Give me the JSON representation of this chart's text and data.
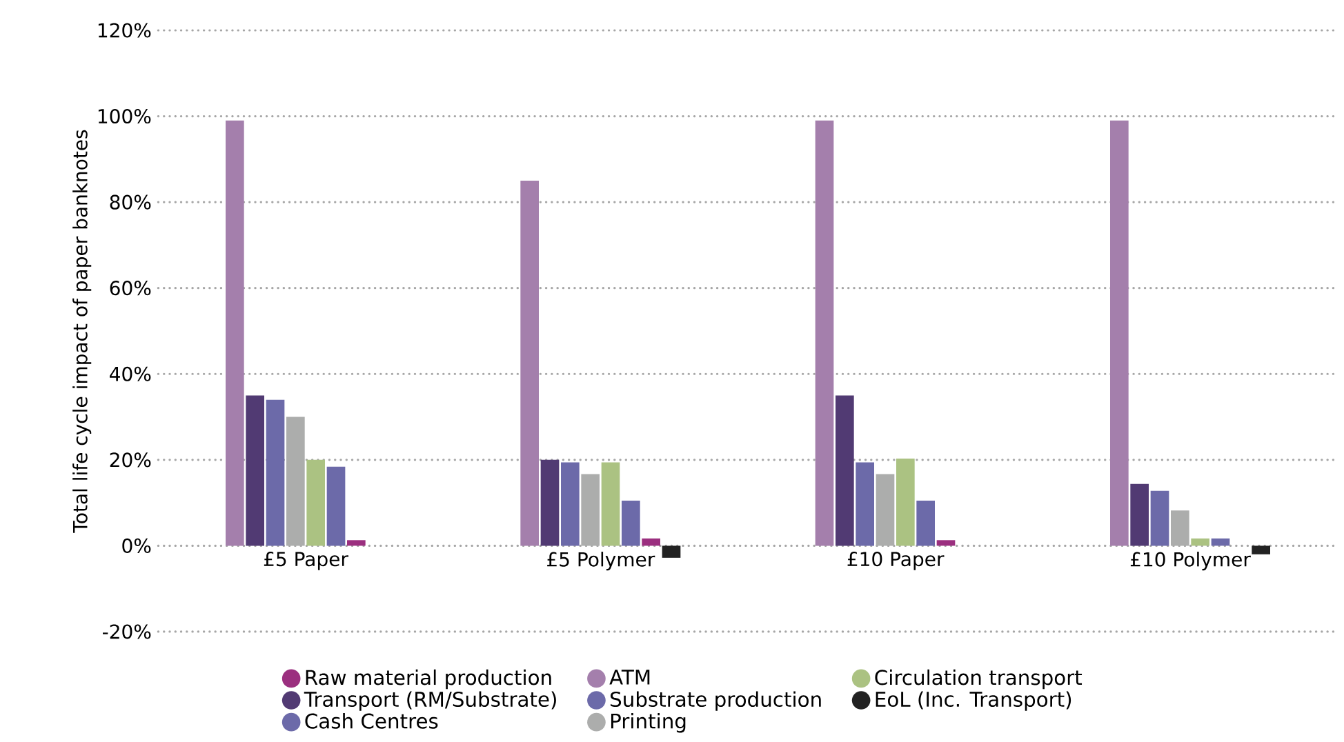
{
  "chart_data": {
    "type": "bar",
    "ylabel": "Total life cycle impact of paper banknotes",
    "categories": [
      "£5 Paper",
      "£5 Polymer",
      "£10 Paper",
      "£10 Polymer"
    ],
    "series": [
      {
        "name": "Raw material production",
        "color": "#9b2f7f",
        "values": [
          1.3,
          1.7,
          1.3,
          0
        ]
      },
      {
        "name": "Transport (RM/Substrate)",
        "color": "#513a73",
        "values": [
          35,
          20,
          35,
          14.4
        ]
      },
      {
        "name": "Cash Centres",
        "color": "#6c6aa9",
        "values": [
          18.4,
          10.5,
          10.5,
          1.7
        ]
      },
      {
        "name": "ATM",
        "color": "#a47fac",
        "values": [
          99,
          85,
          99,
          99
        ]
      },
      {
        "name": "Substrate production",
        "color": "#6c6aa9",
        "values": [
          34,
          19.4,
          19.4,
          12.8
        ]
      },
      {
        "name": "Printing",
        "color": "#acadac",
        "values": [
          30,
          16.7,
          16.7,
          8.2
        ]
      },
      {
        "name": "Circulation transport",
        "color": "#abc282",
        "values": [
          20,
          19.4,
          20.3,
          1.7
        ]
      },
      {
        "name": "EoL (Inc. Transport)",
        "color": "#222222",
        "values": [
          0,
          -2.8,
          0,
          -2
        ]
      }
    ],
    "ylim": [
      -20,
      120
    ],
    "yticks": [
      {
        "value": -20,
        "label": "-20%"
      },
      {
        "value": 0,
        "label": "0%"
      },
      {
        "value": 20,
        "label": "20%"
      },
      {
        "value": 40,
        "label": "40%"
      },
      {
        "value": 60,
        "label": "60%"
      },
      {
        "value": 80,
        "label": "80%"
      },
      {
        "value": 100,
        "label": "100%"
      },
      {
        "value": 120,
        "label": "120%"
      }
    ],
    "grid": "y",
    "legend": "bottom"
  }
}
